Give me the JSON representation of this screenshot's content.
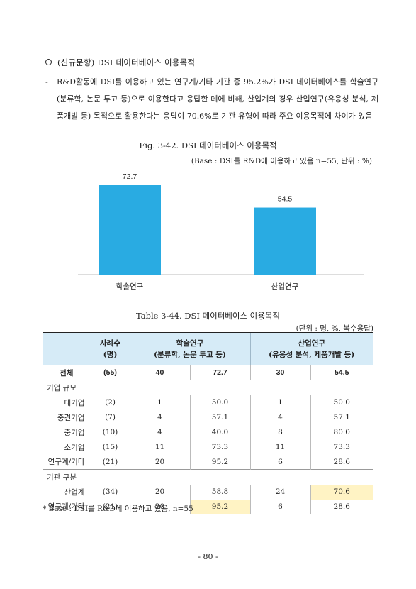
{
  "heading": "(신규문항) DSI 데이터베이스 이용목적",
  "paragraph": {
    "dash": "-",
    "text": "R&D활동에 DSI를 이용하고 있는 연구계/기타 기관 중 95.2%가 DSI 데이터베이스를 학술연구(분류학, 논문 투고 등)으로 이용한다고 응답한 데에 비해, 산업계의 경우 산업연구(유응성 분석, 제품개발 등) 목적으로 활용한다는 응답이 70.6%로 기관 유형에 따라 주요 이용목적에 차이가 있음"
  },
  "figure": {
    "title": "Fig. 3-42. DSI 데이터베이스 이용목적",
    "base": "(Base : DSI를 R&D에 이용하고 있음 n=55, 단위 : %)"
  },
  "chart_data": {
    "type": "bar",
    "categories": [
      "학술연구",
      "산업연구"
    ],
    "values": [
      72.7,
      54.5
    ],
    "data_labels": [
      "72.7",
      "54.5"
    ],
    "bar_color": "#29abe2",
    "ylim": [
      0,
      80
    ]
  },
  "table": {
    "title": "Table 3-44. DSI 데이터베이스 이용목적",
    "unit": "(단위 : 명, %, 복수응답)",
    "headers": {
      "cases": "사례수\n(명)",
      "academic": "학술연구\n(분류학, 논문 투고 등)",
      "industrial": "산업연구\n(유응성 분석, 제품개발 등)"
    },
    "total": {
      "label": "전체",
      "cases": "(55)",
      "a_n": "40",
      "a_p": "72.7",
      "i_n": "30",
      "i_p": "54.5"
    },
    "groups": [
      {
        "title": "기업 규모",
        "rows": [
          {
            "label": "대기업",
            "cases": "(2)",
            "a_n": "1",
            "a_p": "50.0",
            "i_n": "1",
            "i_p": "50.0"
          },
          {
            "label": "중견기업",
            "cases": "(7)",
            "a_n": "4",
            "a_p": "57.1",
            "i_n": "4",
            "i_p": "57.1"
          },
          {
            "label": "중기업",
            "cases": "(10)",
            "a_n": "4",
            "a_p": "40.0",
            "i_n": "8",
            "i_p": "80.0"
          },
          {
            "label": "소기업",
            "cases": "(15)",
            "a_n": "11",
            "a_p": "73.3",
            "i_n": "11",
            "i_p": "73.3"
          },
          {
            "label": "연구계/기타",
            "cases": "(21)",
            "a_n": "20",
            "a_p": "95.2",
            "i_n": "6",
            "i_p": "28.6"
          }
        ]
      },
      {
        "title": "기관 구분",
        "rows": [
          {
            "label": "산업계",
            "cases": "(34)",
            "a_n": "20",
            "a_p": "58.8",
            "i_n": "24",
            "i_p": "70.6"
          },
          {
            "label": "연구계/기타",
            "cases": "(21)",
            "a_n": "20",
            "a_p": "95.2",
            "i_n": "6",
            "i_p": "28.6"
          }
        ]
      }
    ]
  },
  "footnote": "* Base : DSI를 R&D에 이용하고 있음, n=55",
  "page_number": "- 80 -"
}
